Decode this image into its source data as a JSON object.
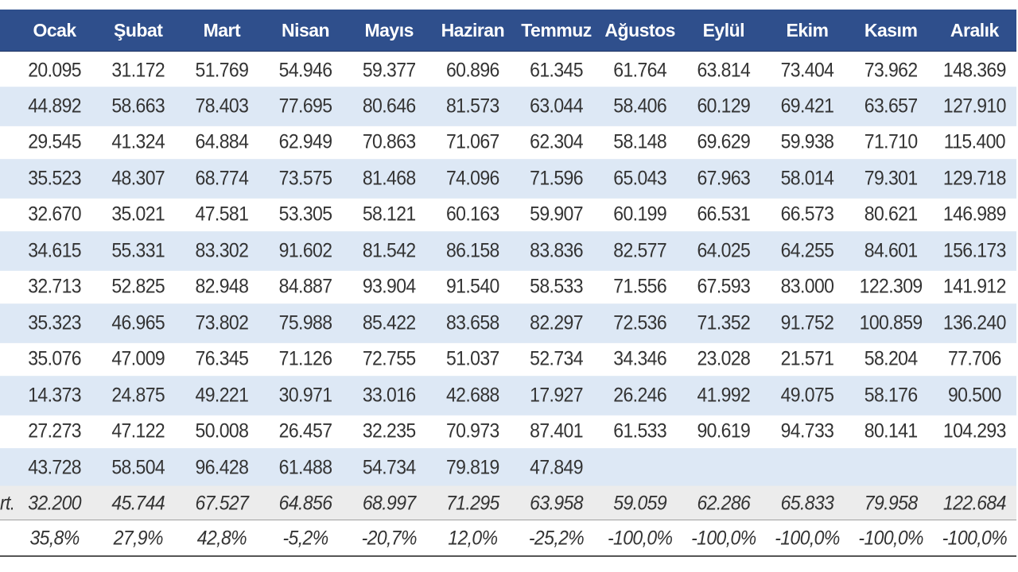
{
  "months": [
    "Ocak",
    "Şubat",
    "Mart",
    "Nisan",
    "Mayıs",
    "Haziran",
    "Temmuz",
    "Ağustos",
    "Eylül",
    "Ekim",
    "Kasım",
    "Aralık"
  ],
  "rows": [
    [
      "20.095",
      "31.172",
      "51.769",
      "54.946",
      "59.377",
      "60.896",
      "61.345",
      "61.764",
      "63.814",
      "73.404",
      "73.962",
      "148.369"
    ],
    [
      "44.892",
      "58.663",
      "78.403",
      "77.695",
      "80.646",
      "81.573",
      "63.044",
      "58.406",
      "60.129",
      "69.421",
      "63.657",
      "127.910"
    ],
    [
      "29.545",
      "41.324",
      "64.884",
      "62.949",
      "70.863",
      "71.067",
      "62.304",
      "58.148",
      "69.629",
      "59.938",
      "71.710",
      "115.400"
    ],
    [
      "35.523",
      "48.307",
      "68.774",
      "73.575",
      "81.468",
      "74.096",
      "71.596",
      "65.043",
      "67.963",
      "58.014",
      "79.301",
      "129.718"
    ],
    [
      "32.670",
      "35.021",
      "47.581",
      "53.305",
      "58.121",
      "60.163",
      "59.907",
      "60.199",
      "66.531",
      "66.573",
      "80.621",
      "146.989"
    ],
    [
      "34.615",
      "55.331",
      "83.302",
      "91.602",
      "81.542",
      "86.158",
      "83.836",
      "82.577",
      "64.025",
      "64.255",
      "84.601",
      "156.173"
    ],
    [
      "32.713",
      "52.825",
      "82.948",
      "84.887",
      "93.904",
      "91.540",
      "58.533",
      "71.556",
      "67.593",
      "83.000",
      "122.309",
      "141.912"
    ],
    [
      "35.323",
      "46.965",
      "73.802",
      "75.988",
      "85.422",
      "83.658",
      "82.297",
      "72.536",
      "71.352",
      "91.752",
      "100.859",
      "136.240"
    ],
    [
      "35.076",
      "47.009",
      "76.345",
      "71.126",
      "72.755",
      "51.037",
      "52.734",
      "34.346",
      "23.028",
      "21.571",
      "58.204",
      "77.706"
    ],
    [
      "14.373",
      "24.875",
      "49.221",
      "30.971",
      "33.016",
      "42.688",
      "17.927",
      "26.246",
      "41.992",
      "49.075",
      "58.176",
      "90.500"
    ],
    [
      "27.273",
      "47.122",
      "50.008",
      "26.457",
      "32.235",
      "70.973",
      "87.401",
      "61.533",
      "90.619",
      "94.733",
      "80.141",
      "104.293"
    ],
    [
      "43.728",
      "58.504",
      "96.428",
      "61.488",
      "54.734",
      "79.819",
      "47.849",
      "",
      "",
      "",
      "",
      ""
    ]
  ],
  "average": {
    "label": "rt.",
    "values": [
      "32.200",
      "45.744",
      "67.527",
      "64.856",
      "68.997",
      "71.295",
      "63.958",
      "59.059",
      "62.286",
      "65.833",
      "79.958",
      "122.684"
    ]
  },
  "change": {
    "label": "",
    "values": [
      "35,8%",
      "27,9%",
      "42,8%",
      "-5,2%",
      "-20,7%",
      "12,0%",
      "-25,2%",
      "-100,0%",
      "-100,0%",
      "-100,0%",
      "-100,0%",
      "-100,0%"
    ]
  }
}
